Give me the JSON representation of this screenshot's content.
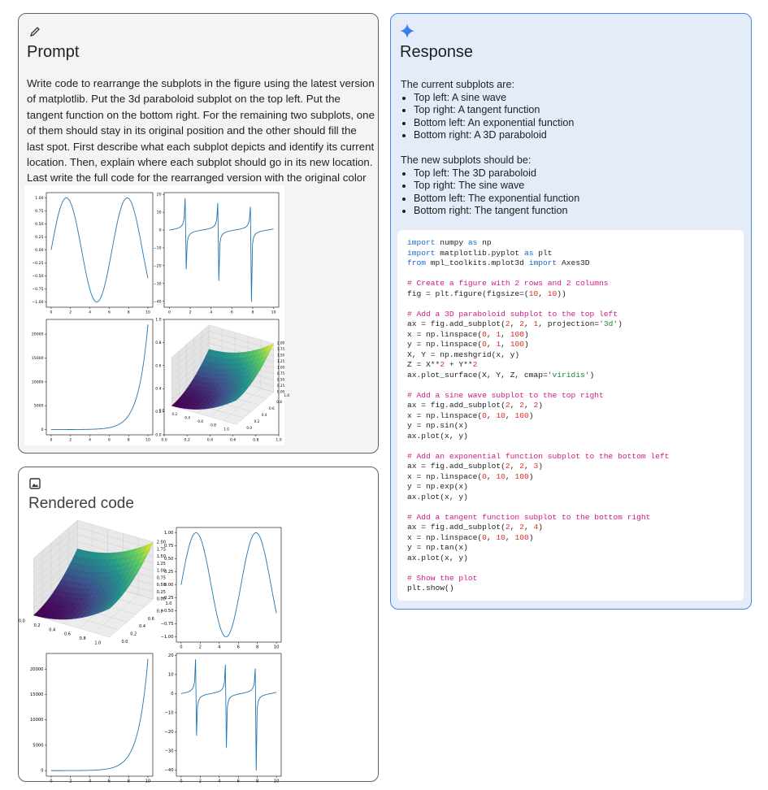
{
  "prompt": {
    "title": "Prompt",
    "text": "Write code to rearrange the subplots in the figure using the latest version of matplotlib. Put the 3d paraboloid subplot on the top left. Put the tangent function on the bottom right. For the remaining two subplots, one of them should stay in its original position and the other should fill the last spot. First describe what each subplot depicts and identify its current location. Then, explain where each subplot should go in its new location.  Last write the full code for the rearranged version with the original color scheme.",
    "figure": {
      "subplots": [
        {
          "type": "line",
          "xlim": [
            -0.5,
            10.5
          ],
          "ylim": [
            -1.1,
            1.1
          ],
          "xticks": [
            0,
            2,
            4,
            6,
            8,
            10
          ],
          "yticks": [
            {
              "value": 1,
              "label": "1.00"
            },
            0.75,
            {
              "value": 0.5,
              "label": "0.50"
            },
            0.25,
            {
              "value": 0,
              "label": "0.00"
            },
            {
              "value": -0.25,
              "label": "−0.25"
            },
            {
              "value": -0.5,
              "label": "−0.50"
            },
            {
              "value": -0.75,
              "label": "−0.75"
            },
            {
              "value": -1,
              "label": "−1.00"
            }
          ]
        },
        {
          "type": "line",
          "xlim": [
            -0.5,
            10.5
          ],
          "ylim": [
            -43.3,
            21
          ],
          "xticks": [
            0,
            2,
            4,
            6,
            8,
            10
          ],
          "yticks": [
            20,
            10,
            0,
            {
              "value": -10,
              "label": "−10"
            },
            {
              "value": -20,
              "label": "−20"
            },
            {
              "value": -30,
              "label": "−30"
            },
            {
              "value": -40,
              "label": "−40"
            }
          ]
        },
        {
          "type": "line",
          "xlim": [
            -0.5,
            10.5
          ],
          "ylim": [
            -1100,
            23100
          ],
          "xticks": [
            0,
            2,
            4,
            6,
            8,
            10
          ],
          "yticks": [
            0,
            5000,
            10000,
            15000,
            20000
          ]
        },
        {
          "type": "surface",
          "frame_xlim": [
            0,
            1
          ],
          "frame_ylim": [
            0,
            1
          ],
          "frame_xticks": [
            {
              "value": 0,
              "label": "0.0"
            },
            0.2,
            0.4,
            0.6,
            0.8,
            {
              "value": 1,
              "label": "1.0"
            }
          ],
          "frame_yticks": [
            {
              "value": 0,
              "label": "0.0"
            },
            0.2,
            0.4,
            0.6,
            0.8,
            {
              "value": 1,
              "label": "1.0"
            }
          ],
          "xlim": [
            0,
            1
          ],
          "ylim": [
            0,
            1
          ],
          "zlim": [
            0,
            2
          ],
          "xticks": [
            {
              "value": 0,
              "label": "0.0"
            },
            0.2,
            0.4,
            0.6,
            0.8,
            {
              "value": 1,
              "label": "1.0"
            }
          ],
          "yticks": [
            {
              "value": 0,
              "label": "0.0"
            },
            0.2,
            0.4,
            0.6,
            0.8,
            {
              "value": 1,
              "label": "1.0"
            }
          ],
          "zticks": [
            {
              "value": 0,
              "label": "0.00"
            },
            0.25,
            {
              "value": 0.5,
              "label": "0.50"
            },
            0.75,
            {
              "value": 1,
              "label": "1.00"
            },
            1.25,
            {
              "value": 1.5,
              "label": "1.50"
            },
            1.75,
            {
              "value": 2,
              "label": "2.00"
            }
          ]
        }
      ]
    }
  },
  "rendered": {
    "title": "Rendered code",
    "figure": {
      "subplots": [
        {
          "type": "surface",
          "xlim": [
            0,
            1
          ],
          "ylim": [
            0,
            1
          ],
          "zlim": [
            0,
            2
          ],
          "xticks": [
            {
              "value": 0,
              "label": "0.0"
            },
            0.2,
            0.4,
            0.6,
            0.8,
            {
              "value": 1,
              "label": "1.0"
            }
          ],
          "yticks": [
            {
              "value": 0,
              "label": "0.0"
            },
            0.2,
            0.4,
            0.6,
            0.8,
            {
              "value": 1,
              "label": "1.0"
            }
          ],
          "zticks": [
            {
              "value": 0,
              "label": "0.00"
            },
            0.25,
            {
              "value": 0.5,
              "label": "0.50"
            },
            0.75,
            {
              "value": 1,
              "label": "1.00"
            },
            1.25,
            {
              "value": 1.5,
              "label": "1.50"
            },
            1.75,
            {
              "value": 2,
              "label": "2.00"
            }
          ]
        },
        {
          "type": "line",
          "xlim": [
            -0.5,
            10.5
          ],
          "ylim": [
            -1.1,
            1.1
          ],
          "xticks": [
            0,
            2,
            4,
            6,
            8,
            10
          ],
          "yticks": [
            {
              "value": 1,
              "label": "1.00"
            },
            0.75,
            {
              "value": 0.5,
              "label": "0.50"
            },
            0.25,
            {
              "value": 0,
              "label": "0.00"
            },
            {
              "value": -0.25,
              "label": "−0.25"
            },
            {
              "value": -0.5,
              "label": "−0.50"
            },
            {
              "value": -0.75,
              "label": "−0.75"
            },
            {
              "value": -1,
              "label": "−1.00"
            }
          ]
        },
        {
          "type": "line",
          "xlim": [
            -0.5,
            10.5
          ],
          "ylim": [
            -1100,
            23100
          ],
          "xticks": [
            0,
            2,
            4,
            6,
            8,
            10
          ],
          "yticks": [
            0,
            5000,
            10000,
            15000,
            20000
          ]
        },
        {
          "type": "line",
          "xlim": [
            -0.5,
            10.5
          ],
          "ylim": [
            -43.3,
            21
          ],
          "xticks": [
            0,
            2,
            4,
            6,
            8,
            10
          ],
          "yticks": [
            20,
            10,
            0,
            {
              "value": -10,
              "label": "−10"
            },
            {
              "value": -20,
              "label": "−20"
            },
            {
              "value": -30,
              "label": "−30"
            },
            {
              "value": -40,
              "label": "−40"
            }
          ]
        }
      ]
    }
  },
  "response": {
    "title": "Response",
    "current_intro": "The current subplots are:",
    "current": [
      "Top left: A sine wave",
      "Top right: A tangent function",
      "Bottom left: An exponential function",
      "Bottom right: A 3D paraboloid"
    ],
    "new_intro": "The new subplots should be:",
    "new": [
      "Top left: The 3D paraboloid",
      "Top right: The sine wave",
      "Bottom left: The exponential function",
      "Bottom right: The tangent function"
    ],
    "code": "import numpy as np\nimport matplotlib.pyplot as plt\nfrom mpl_toolkits.mplot3d import Axes3D\n\n# Create a figure with 2 rows and 2 columns\nfig = plt.figure(figsize=(10, 10))\n\n# Add a 3D paraboloid subplot to the top left\nax = fig.add_subplot(2, 2, 1, projection='3d')\nx = np.linspace(0, 1, 100)\ny = np.linspace(0, 1, 100)\nX, Y = np.meshgrid(x, y)\nZ = X**2 + Y**2\nax.plot_surface(X, Y, Z, cmap='viridis')\n\n# Add a sine wave subplot to the top right\nax = fig.add_subplot(2, 2, 2)\nx = np.linspace(0, 10, 100)\ny = np.sin(x)\nax.plot(x, y)\n\n# Add an exponential function subplot to the bottom left\nax = fig.add_subplot(2, 2, 3)\nx = np.linspace(0, 10, 100)\ny = np.exp(x)\nax.plot(x, y)\n\n# Add a tangent function subplot to the bottom right\nax = fig.add_subplot(2, 2, 4)\nx = np.linspace(0, 10, 100)\ny = np.tan(x)\nax.plot(x, y)\n\n# Show the plot\nplt.show()"
  }
}
